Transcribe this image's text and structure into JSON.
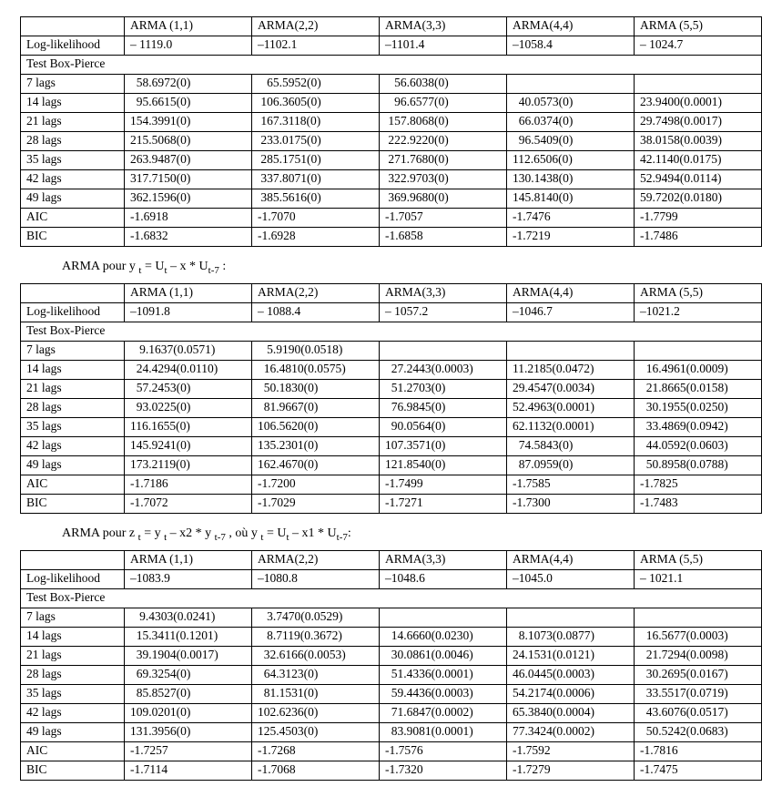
{
  "tables": [
    {
      "title_html": "",
      "columns": [
        "",
        "ARMA (1,1)",
        "ARMA(2,2)",
        "ARMA(3,3)",
        "ARMA(4,4)",
        "ARMA (5,5)"
      ],
      "loglik": [
        "Log-likelihood",
        "– 1119.0",
        "–1102.1",
        "–1101.4",
        "–1058.4",
        "– 1024.7"
      ],
      "bp_header": "Test Box-Pierce",
      "rows": [
        {
          "label": "7 lags",
          "cells": [
            {
              "v": "  58.6972(0)",
              "b": false
            },
            {
              "v": "   65.5952(0)",
              "b": false
            },
            {
              "v": "   56.6038(0)",
              "b": false
            },
            {
              "v": "",
              "b": false
            },
            {
              "v": "",
              "b": false
            }
          ]
        },
        {
          "label": "14 lags",
          "cells": [
            {
              "v": "  95.6615(0)",
              "b": false
            },
            {
              "v": " 106.3605(0)",
              "b": false
            },
            {
              "v": "   96.6577(0)",
              "b": false
            },
            {
              "v": "  40.0573(0)",
              "b": false
            },
            {
              "v": "23.9400(0.0001)",
              "b": false
            }
          ]
        },
        {
          "label": "21 lags",
          "cells": [
            {
              "v": "154.3991(0)",
              "b": false
            },
            {
              "v": " 167.3118(0)",
              "b": false
            },
            {
              "v": " 157.8068(0)",
              "b": false
            },
            {
              "v": "  66.0374(0)",
              "b": false
            },
            {
              "v": "29.7498(0.0017)",
              "b": false
            }
          ]
        },
        {
          "label": "28 lags",
          "cells": [
            {
              "v": "215.5068(0)",
              "b": false
            },
            {
              "v": " 233.0175(0)",
              "b": false
            },
            {
              "v": " 222.9220(0)",
              "b": false
            },
            {
              "v": "  96.5409(0)",
              "b": false
            },
            {
              "v": "38.0158(0.0039)",
              "b": false
            }
          ]
        },
        {
          "label": "35 lags",
          "cells": [
            {
              "v": "263.9487(0)",
              "b": false
            },
            {
              "v": " 285.1751(0)",
              "b": false
            },
            {
              "v": " 271.7680(0)",
              "b": false
            },
            {
              "v": "112.6506(0)",
              "b": false
            },
            {
              "v": "42.1140(0.0175)",
              "b": false
            }
          ]
        },
        {
          "label": "42 lags",
          "cells": [
            {
              "v": "317.7150(0)",
              "b": false
            },
            {
              "v": " 337.8071(0)",
              "b": false
            },
            {
              "v": " 322.9703(0)",
              "b": false
            },
            {
              "v": "130.1438(0)",
              "b": false
            },
            {
              "v": "52.9494(0.0114)",
              "b": false
            }
          ]
        },
        {
          "label": "49 lags",
          "cells": [
            {
              "v": "362.1596(0)",
              "b": false
            },
            {
              "v": " 385.5616(0)",
              "b": false
            },
            {
              "v": " 369.9680(0)",
              "b": false
            },
            {
              "v": "145.8140(0)",
              "b": false
            },
            {
              "v": "59.7202(0.0180)",
              "b": false
            }
          ]
        }
      ],
      "aic": [
        "AIC",
        "-1.6918",
        "-1.7070",
        "-1.7057",
        "-1.7476",
        "-1.7799"
      ],
      "bic": [
        "BIC",
        "-1.6832",
        "-1.6928",
        "-1.6858",
        "-1.7219",
        "-1.7486"
      ]
    },
    {
      "title_html": "ARMA  pour  y <span class='sub'>t</span> = U<span class='sub'>t</span> – x *  U<span class='sub'>t-7</span> :",
      "columns": [
        "",
        "ARMA (1,1)",
        "ARMA(2,2)",
        "ARMA(3,3)",
        "ARMA(4,4)",
        "ARMA (5,5)"
      ],
      "loglik": [
        "Log-likelihood",
        "–1091.8",
        "– 1088.4",
        "– 1057.2",
        "–1046.7",
        "–1021.2"
      ],
      "bp_header": "Test Box-Pierce",
      "rows": [
        {
          "label": "7 lags",
          "cells": [
            {
              "v": "   9.1637(0.0571)",
              "b": true
            },
            {
              "v": "   5.9190(0.0518)",
              "b": true
            },
            {
              "v": "",
              "b": false
            },
            {
              "v": "",
              "b": false
            },
            {
              "v": "",
              "b": false
            }
          ]
        },
        {
          "label": "14 lags",
          "cells": [
            {
              "v": "  24.4294(0.0110)",
              "b": false
            },
            {
              "v": "  16.4810(0.0575)",
              "b": true
            },
            {
              "v": "  27.2443(0.0003)",
              "b": false
            },
            {
              "v": "11.2185(0.0472)",
              "b": false
            },
            {
              "v": "  16.4961(0.0009)",
              "b": false
            }
          ]
        },
        {
          "label": "21 lags",
          "cells": [
            {
              "v": "  57.2453(0)",
              "b": false
            },
            {
              "v": "  50.1830(0)",
              "b": false
            },
            {
              "v": "  51.2703(0)",
              "b": false
            },
            {
              "v": "29.4547(0.0034)",
              "b": false
            },
            {
              "v": "  21.8665(0.0158)",
              "b": false
            }
          ]
        },
        {
          "label": "28 lags",
          "cells": [
            {
              "v": "  93.0225(0)",
              "b": false
            },
            {
              "v": "  81.9667(0)",
              "b": false
            },
            {
              "v": "  76.9845(0)",
              "b": false
            },
            {
              "v": "52.4963(0.0001)",
              "b": false
            },
            {
              "v": "  30.1955(0.0250)",
              "b": false
            }
          ]
        },
        {
          "label": "35 lags",
          "cells": [
            {
              "v": "116.1655(0)",
              "b": false
            },
            {
              "v": "106.5620(0)",
              "b": false
            },
            {
              "v": "  90.0564(0)",
              "b": false
            },
            {
              "v": "62.1132(0.0001)",
              "b": false
            },
            {
              "v": "  33.4869(0.0942)",
              "b": true
            }
          ]
        },
        {
          "label": "42 lags",
          "cells": [
            {
              "v": "145.9241(0)",
              "b": false
            },
            {
              "v": "135.2301(0)",
              "b": false
            },
            {
              "v": "107.3571(0)",
              "b": false
            },
            {
              "v": "  74.5843(0)",
              "b": false
            },
            {
              "v": "  44.0592(0.0603)",
              "b": true
            }
          ]
        },
        {
          "label": "49 lags",
          "cells": [
            {
              "v": "173.2119(0)",
              "b": false
            },
            {
              "v": "162.4670(0)",
              "b": false
            },
            {
              "v": "121.8540(0)",
              "b": false
            },
            {
              "v": "  87.0959(0)",
              "b": false
            },
            {
              "v": "  50.8958(0.0788)",
              "b": true
            }
          ]
        }
      ],
      "aic": [
        "AIC",
        "-1.7186",
        "-1.7200",
        "-1.7499",
        "-1.7585",
        "-1.7825"
      ],
      "bic": [
        "BIC",
        "-1.7072",
        "-1.7029",
        "-1.7271",
        "-1.7300",
        "-1.7483"
      ]
    },
    {
      "title_html": "ARMA   pour  z <span class='sub'>t</span> = y <span class='sub'>t</span> – x2 *  y <span class='sub'>t-7</span> ,   où y <span class='sub'>t</span> = U<span class='sub'>t</span> – x1 * U<span class='sub'>t-7</span>:",
      "columns": [
        "",
        "ARMA (1,1)",
        "ARMA(2,2)",
        "ARMA(3,3)",
        "ARMA(4,4)",
        "ARMA (5,5)"
      ],
      "loglik": [
        "Log-likelihood",
        "–1083.9",
        "–1080.8",
        "–1048.6",
        "–1045.0",
        "– 1021.1"
      ],
      "bp_header": "Test Box-Pierce",
      "rows": [
        {
          "label": "7 lags",
          "cells": [
            {
              "v": "   9.4303(0.0241)",
              "b": false
            },
            {
              "v": "   3.7470(0.0529)",
              "b": true
            },
            {
              "v": "",
              "b": false
            },
            {
              "v": "",
              "b": false
            },
            {
              "v": "",
              "b": false
            }
          ]
        },
        {
          "label": "14 lags",
          "cells": [
            {
              "v": "  15.3411(0.1201)",
              "b": true
            },
            {
              "v": "   8.7119(0.3672)",
              "b": true
            },
            {
              "v": "  14.6660(0.0230)",
              "b": false
            },
            {
              "v": "  8.1073(0.0877)",
              "b": true
            },
            {
              "v": "  16.5677(0.0003)",
              "b": false
            }
          ]
        },
        {
          "label": "21 lags",
          "cells": [
            {
              "v": "  39.1904(0.0017)",
              "b": false
            },
            {
              "v": "  32.6166(0.0053)",
              "b": false
            },
            {
              "v": "  30.0861(0.0046)",
              "b": false
            },
            {
              "v": "24.1531(0.0121)",
              "b": false
            },
            {
              "v": "  21.7294(0.0098)",
              "b": false
            }
          ]
        },
        {
          "label": "28 lags",
          "cells": [
            {
              "v": "  69.3254(0)",
              "b": false
            },
            {
              "v": "  64.3123(0)",
              "b": false
            },
            {
              "v": "  51.4336(0.0001)",
              "b": false
            },
            {
              "v": "46.0445(0.0003)",
              "b": false
            },
            {
              "v": "  30.2695(0.0167)",
              "b": false
            }
          ]
        },
        {
          "label": "35 lags",
          "cells": [
            {
              "v": "  85.8527(0)",
              "b": false
            },
            {
              "v": "  81.1531(0)",
              "b": false
            },
            {
              "v": "  59.4436(0.0003)",
              "b": false
            },
            {
              "v": "54.2174(0.0006)",
              "b": false
            },
            {
              "v": "  33.5517(0.0719)",
              "b": true
            }
          ]
        },
        {
          "label": "42 lags",
          "cells": [
            {
              "v": "109.0201(0)",
              "b": false
            },
            {
              "v": "102.6236(0)",
              "b": false
            },
            {
              "v": "  71.6847(0.0002)",
              "b": false
            },
            {
              "v": "65.3840(0.0004)",
              "b": false
            },
            {
              "v": "  43.6076(0.0517)",
              "b": true
            }
          ]
        },
        {
          "label": "49 lags",
          "cells": [
            {
              "v": "131.3956(0)",
              "b": false
            },
            {
              "v": "125.4503(0)",
              "b": false
            },
            {
              "v": "  83.9081(0.0001)",
              "b": false
            },
            {
              "v": "77.3424(0.0002)",
              "b": false
            },
            {
              "v": "  50.5242(0.0683)",
              "b": true
            }
          ]
        }
      ],
      "aic": [
        "AIC",
        "-1.7257",
        "-1.7268",
        "-1.7576",
        "-1.7592",
        "-1.7816"
      ],
      "bic": [
        "BIC",
        "-1.7114",
        "-1.7068",
        "-1.7320",
        "-1.7279",
        "-1.7475"
      ]
    }
  ]
}
